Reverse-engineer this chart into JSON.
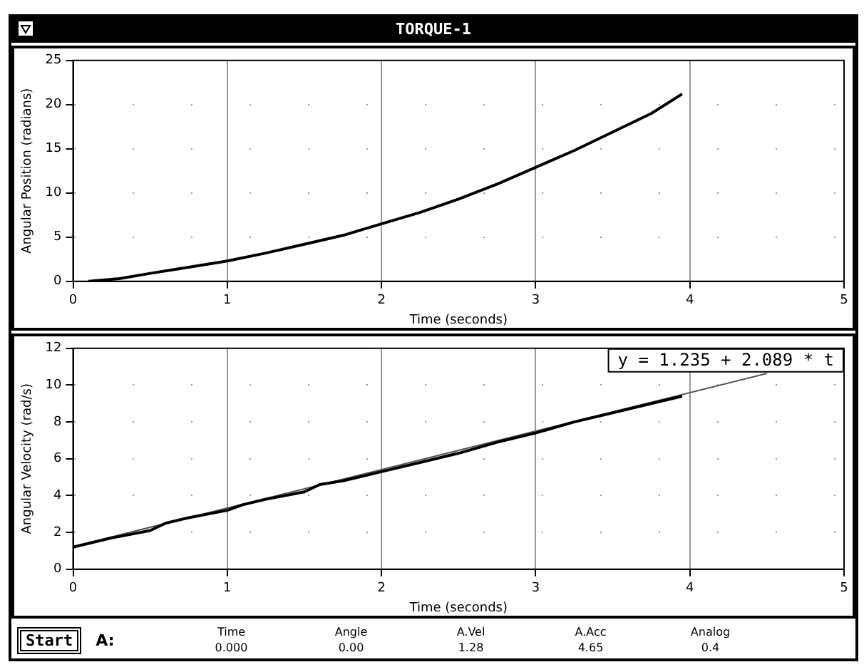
{
  "chart_data": [
    {
      "type": "line",
      "title": "TORQUE-1",
      "xlabel": "Time (seconds)",
      "ylabel": "Angular Position (radians)",
      "xlim": [
        0,
        5
      ],
      "xticks": [
        0,
        1,
        2,
        3,
        4,
        5
      ],
      "ylim": [
        0,
        25
      ],
      "yticks": [
        0,
        5,
        10,
        15,
        20,
        25
      ],
      "grid": true,
      "marker": "none",
      "line_style": "solid",
      "legend": false,
      "series": [
        {
          "color": "#000000",
          "x": [
            0.1,
            0.3,
            0.5,
            0.75,
            1,
            1.25,
            1.5,
            1.75,
            2,
            2.25,
            2.5,
            2.75,
            3,
            3.25,
            3.5,
            3.75,
            3.95
          ],
          "values": [
            0,
            0.3,
            0.9,
            1.6,
            2.3,
            3.2,
            4.2,
            5.2,
            6.5,
            7.8,
            9.3,
            11,
            12.9,
            14.8,
            16.9,
            19,
            21.2
          ]
        }
      ]
    },
    {
      "type": "line",
      "xlabel": "Time (seconds)",
      "ylabel": "Angular Velocity (rad/s)",
      "xlim": [
        0,
        5
      ],
      "xticks": [
        0,
        1,
        2,
        3,
        4,
        5
      ],
      "ylim": [
        0,
        12
      ],
      "yticks": [
        0,
        2,
        4,
        6,
        8,
        10,
        12
      ],
      "grid": true,
      "marker": "none",
      "line_style": "solid",
      "legend": false,
      "annotations": [
        "y = 1.235 + 2.089 * t"
      ],
      "series": [
        {
          "color": "#000000",
          "x": [
            0,
            0.25,
            0.5,
            0.6,
            0.75,
            1,
            1.1,
            1.25,
            1.5,
            1.6,
            1.75,
            2,
            2.25,
            2.5,
            2.75,
            3,
            3.25,
            3.5,
            3.75,
            3.95
          ],
          "values": [
            1.2,
            1.7,
            2.1,
            2.5,
            2.8,
            3.2,
            3.5,
            3.8,
            4.2,
            4.6,
            4.8,
            5.3,
            5.8,
            6.3,
            6.9,
            7.4,
            8.0,
            8.5,
            9.0,
            9.4
          ]
        },
        {
          "color": "#555555",
          "x": [
            0,
            4.5
          ],
          "values": [
            1.235,
            10.636
          ]
        }
      ]
    },
    {
      "type": "other",
      "annotations": [
        "Start",
        "A:",
        "Time",
        "0.000",
        "Angle",
        "0.00",
        "A.Vel",
        "1.28",
        "A.Acc",
        "4.65",
        "Analog",
        "0.4"
      ]
    }
  ]
}
